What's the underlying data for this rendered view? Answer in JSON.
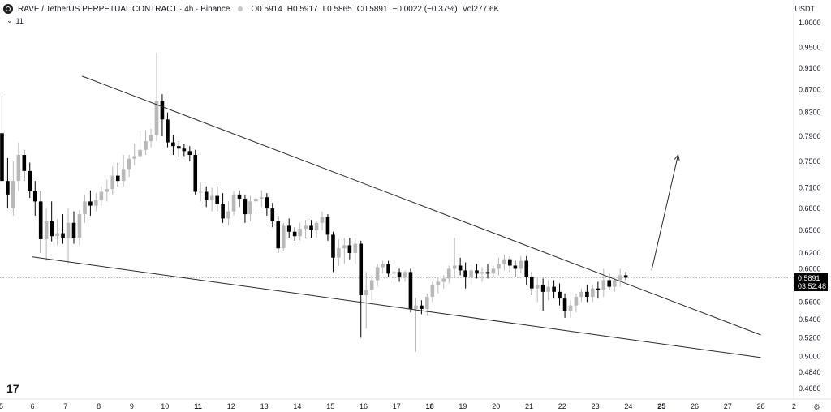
{
  "header": {
    "symbol": "RAVE / TetherUS PERPETUAL CONTRACT · 4h · Binance",
    "open": "O0.5914",
    "high": "H0.5917",
    "low": "L0.5865",
    "close": "C0.5891",
    "change": "−0.0022 (−0.37%)",
    "volume": "Vol277.6K",
    "indicator_toggle": "⌄",
    "indicator_count": "11",
    "currency": "USDT"
  },
  "price_tag": {
    "price": "0.5891",
    "countdown": "03:52:48"
  },
  "footer": {
    "tv_logo": "17"
  },
  "chart_data": {
    "type": "candlestick",
    "y_axis": {
      "scale": "log",
      "ylim": [
        0.46,
        1.03
      ],
      "ticks": [
        "1.0000",
        "0.9500",
        "0.9100",
        "0.8700",
        "0.8300",
        "0.7900",
        "0.7500",
        "0.7100",
        "0.6800",
        "0.6500",
        "0.6200",
        "0.6000",
        "0.5600",
        "0.5400",
        "0.5200",
        "0.5000",
        "0.4840",
        "0.4680"
      ]
    },
    "x_axis": {
      "ticks": [
        {
          "label": "6",
          "day": 6
        },
        {
          "label": "7",
          "day": 7
        },
        {
          "label": "8",
          "day": 8
        },
        {
          "label": "9",
          "day": 9
        },
        {
          "label": "10",
          "day": 10
        },
        {
          "label": "11",
          "day": 11,
          "bold": true
        },
        {
          "label": "12",
          "day": 12
        },
        {
          "label": "13",
          "day": 13
        },
        {
          "label": "14",
          "day": 14
        },
        {
          "label": "15",
          "day": 15
        },
        {
          "label": "16",
          "day": 16
        },
        {
          "label": "17",
          "day": 17
        },
        {
          "label": "18",
          "day": 18,
          "bold": true
        },
        {
          "label": "19",
          "day": 19
        },
        {
          "label": "20",
          "day": 20
        },
        {
          "label": "21",
          "day": 21
        },
        {
          "label": "22",
          "day": 22
        },
        {
          "label": "23",
          "day": 23
        },
        {
          "label": "24",
          "day": 24
        },
        {
          "label": "25",
          "day": 25,
          "bold": true
        },
        {
          "label": "26",
          "day": 26
        },
        {
          "label": "27",
          "day": 27
        },
        {
          "label": "28",
          "day": 28
        },
        {
          "label": "2",
          "day": 29
        }
      ]
    },
    "x_range_days": [
      5.1,
      29.1
    ],
    "current_price": 0.5891,
    "up_color": "#b8b8b8",
    "down_color": "#000000",
    "candles": [
      [
        5.08,
        0.795,
        0.86,
        0.72,
        0.72
      ],
      [
        5.25,
        0.72,
        0.755,
        0.68,
        0.7
      ],
      [
        5.42,
        0.68,
        0.75,
        0.67,
        0.72
      ],
      [
        5.58,
        0.72,
        0.78,
        0.705,
        0.76
      ],
      [
        5.75,
        0.76,
        0.768,
        0.72,
        0.735
      ],
      [
        5.92,
        0.735,
        0.748,
        0.695,
        0.705
      ],
      [
        6.08,
        0.705,
        0.72,
        0.67,
        0.69
      ],
      [
        6.25,
        0.69,
        0.705,
        0.62,
        0.638
      ],
      [
        6.42,
        0.638,
        0.68,
        0.61,
        0.662
      ],
      [
        6.58,
        0.662,
        0.69,
        0.635,
        0.642
      ],
      [
        6.75,
        0.642,
        0.665,
        0.63,
        0.646
      ],
      [
        6.92,
        0.646,
        0.672,
        0.632,
        0.64
      ],
      [
        7.08,
        0.64,
        0.68,
        0.605,
        0.66
      ],
      [
        7.25,
        0.66,
        0.676,
        0.632,
        0.64
      ],
      [
        7.42,
        0.64,
        0.678,
        0.63,
        0.672
      ],
      [
        7.58,
        0.672,
        0.7,
        0.66,
        0.69
      ],
      [
        7.75,
        0.69,
        0.706,
        0.67,
        0.684
      ],
      [
        7.92,
        0.684,
        0.702,
        0.676,
        0.692
      ],
      [
        8.08,
        0.692,
        0.712,
        0.684,
        0.704
      ],
      [
        8.25,
        0.704,
        0.722,
        0.69,
        0.708
      ],
      [
        8.42,
        0.708,
        0.742,
        0.7,
        0.728
      ],
      [
        8.58,
        0.728,
        0.748,
        0.712,
        0.72
      ],
      [
        8.75,
        0.72,
        0.76,
        0.712,
        0.738
      ],
      [
        8.92,
        0.738,
        0.76,
        0.726,
        0.754
      ],
      [
        9.08,
        0.754,
        0.778,
        0.744,
        0.758
      ],
      [
        9.25,
        0.758,
        0.8,
        0.75,
        0.768
      ],
      [
        9.42,
        0.768,
        0.8,
        0.76,
        0.782
      ],
      [
        9.58,
        0.782,
        0.802,
        0.772,
        0.792
      ],
      [
        9.75,
        0.792,
        0.94,
        0.782,
        0.85
      ],
      [
        9.92,
        0.85,
        0.862,
        0.79,
        0.818
      ],
      [
        10.08,
        0.818,
        0.83,
        0.772,
        0.78
      ],
      [
        10.25,
        0.78,
        0.792,
        0.76,
        0.774
      ],
      [
        10.42,
        0.774,
        0.782,
        0.756,
        0.77
      ],
      [
        10.58,
        0.77,
        0.778,
        0.758,
        0.766
      ],
      [
        10.75,
        0.766,
        0.774,
        0.75,
        0.76
      ],
      [
        10.92,
        0.76,
        0.768,
        0.7,
        0.704
      ],
      [
        11.08,
        0.704,
        0.718,
        0.69,
        0.704
      ],
      [
        11.25,
        0.704,
        0.712,
        0.682,
        0.692
      ],
      [
        11.42,
        0.692,
        0.71,
        0.676,
        0.698
      ],
      [
        11.58,
        0.698,
        0.712,
        0.676,
        0.686
      ],
      [
        11.75,
        0.686,
        0.702,
        0.66,
        0.666
      ],
      [
        11.92,
        0.666,
        0.69,
        0.656,
        0.676
      ],
      [
        12.08,
        0.676,
        0.705,
        0.67,
        0.7
      ],
      [
        12.25,
        0.7,
        0.706,
        0.682,
        0.694
      ],
      [
        12.42,
        0.694,
        0.7,
        0.66,
        0.672
      ],
      [
        12.58,
        0.672,
        0.698,
        0.662,
        0.69
      ],
      [
        12.75,
        0.69,
        0.7,
        0.68,
        0.694
      ],
      [
        12.92,
        0.694,
        0.706,
        0.682,
        0.696
      ],
      [
        13.08,
        0.696,
        0.702,
        0.67,
        0.68
      ],
      [
        13.25,
        0.68,
        0.688,
        0.654,
        0.662
      ],
      [
        13.42,
        0.662,
        0.67,
        0.62,
        0.626
      ],
      [
        13.58,
        0.626,
        0.66,
        0.622,
        0.656
      ],
      [
        13.75,
        0.656,
        0.666,
        0.64,
        0.648
      ],
      [
        13.92,
        0.648,
        0.654,
        0.636,
        0.642
      ],
      [
        14.08,
        0.642,
        0.66,
        0.636,
        0.652
      ],
      [
        14.25,
        0.652,
        0.664,
        0.64,
        0.656
      ],
      [
        14.42,
        0.656,
        0.664,
        0.64,
        0.65
      ],
      [
        14.58,
        0.65,
        0.662,
        0.64,
        0.66
      ],
      [
        14.75,
        0.66,
        0.676,
        0.65,
        0.668
      ],
      [
        14.92,
        0.668,
        0.672,
        0.636,
        0.644
      ],
      [
        15.08,
        0.644,
        0.648,
        0.596,
        0.614
      ],
      [
        15.25,
        0.614,
        0.638,
        0.604,
        0.626
      ],
      [
        15.42,
        0.626,
        0.64,
        0.606,
        0.63
      ],
      [
        15.58,
        0.63,
        0.64,
        0.612,
        0.62
      ],
      [
        15.75,
        0.62,
        0.64,
        0.606,
        0.632
      ],
      [
        15.92,
        0.632,
        0.636,
        0.52,
        0.568
      ],
      [
        16.08,
        0.568,
        0.596,
        0.53,
        0.574
      ],
      [
        16.25,
        0.574,
        0.592,
        0.562,
        0.586
      ],
      [
        16.42,
        0.586,
        0.606,
        0.578,
        0.602
      ],
      [
        16.58,
        0.602,
        0.61,
        0.594,
        0.606
      ],
      [
        16.75,
        0.606,
        0.61,
        0.59,
        0.594
      ],
      [
        16.92,
        0.594,
        0.602,
        0.586,
        0.596
      ],
      [
        17.08,
        0.596,
        0.6,
        0.584,
        0.59
      ],
      [
        17.25,
        0.59,
        0.598,
        0.584,
        0.596
      ],
      [
        17.42,
        0.596,
        0.6,
        0.548,
        0.552
      ],
      [
        17.58,
        0.552,
        0.565,
        0.505,
        0.556
      ],
      [
        17.75,
        0.556,
        0.562,
        0.546,
        0.552
      ],
      [
        17.92,
        0.552,
        0.57,
        0.544,
        0.566
      ],
      [
        18.08,
        0.566,
        0.584,
        0.56,
        0.58
      ],
      [
        18.25,
        0.58,
        0.59,
        0.57,
        0.584
      ],
      [
        18.42,
        0.584,
        0.592,
        0.576,
        0.588
      ],
      [
        18.58,
        0.588,
        0.604,
        0.582,
        0.6
      ],
      [
        18.75,
        0.6,
        0.64,
        0.59,
        0.604
      ],
      [
        18.92,
        0.604,
        0.614,
        0.592,
        0.598
      ],
      [
        19.08,
        0.598,
        0.608,
        0.576,
        0.59
      ],
      [
        19.25,
        0.59,
        0.604,
        0.58,
        0.598
      ],
      [
        19.42,
        0.598,
        0.606,
        0.588,
        0.594
      ],
      [
        19.58,
        0.594,
        0.602,
        0.584,
        0.596
      ],
      [
        19.75,
        0.596,
        0.606,
        0.588,
        0.594
      ],
      [
        19.92,
        0.594,
        0.604,
        0.59,
        0.6
      ],
      [
        20.08,
        0.6,
        0.614,
        0.592,
        0.606
      ],
      [
        20.25,
        0.606,
        0.618,
        0.598,
        0.612
      ],
      [
        20.42,
        0.612,
        0.616,
        0.596,
        0.604
      ],
      [
        20.58,
        0.604,
        0.61,
        0.59,
        0.6
      ],
      [
        20.75,
        0.6,
        0.616,
        0.594,
        0.61
      ],
      [
        20.92,
        0.61,
        0.616,
        0.58,
        0.59
      ],
      [
        21.08,
        0.59,
        0.596,
        0.568,
        0.576
      ],
      [
        21.25,
        0.576,
        0.588,
        0.56,
        0.58
      ],
      [
        21.42,
        0.58,
        0.588,
        0.55,
        0.572
      ],
      [
        21.58,
        0.572,
        0.586,
        0.562,
        0.578
      ],
      [
        21.75,
        0.578,
        0.586,
        0.564,
        0.572
      ],
      [
        21.92,
        0.572,
        0.582,
        0.556,
        0.564
      ],
      [
        22.08,
        0.564,
        0.57,
        0.542,
        0.55
      ],
      [
        22.25,
        0.55,
        0.562,
        0.542,
        0.556
      ],
      [
        22.42,
        0.556,
        0.57,
        0.548,
        0.566
      ],
      [
        22.58,
        0.566,
        0.576,
        0.56,
        0.572
      ],
      [
        22.75,
        0.572,
        0.58,
        0.56,
        0.566
      ],
      [
        22.92,
        0.566,
        0.58,
        0.56,
        0.576
      ],
      [
        23.08,
        0.576,
        0.584,
        0.564,
        0.574
      ],
      [
        23.25,
        0.574,
        0.6,
        0.566,
        0.586
      ],
      [
        23.42,
        0.586,
        0.594,
        0.574,
        0.578
      ],
      [
        23.58,
        0.578,
        0.59,
        0.572,
        0.586
      ],
      [
        23.75,
        0.586,
        0.6,
        0.578,
        0.592
      ],
      [
        23.92,
        0.592,
        0.596,
        0.586,
        0.589
      ]
    ],
    "annotations": {
      "upper_trendline": [
        [
          7.5,
          0.895
        ],
        [
          28.0,
          0.523
        ]
      ],
      "lower_trendline": [
        [
          6.0,
          0.615
        ],
        [
          28.0,
          0.499
        ]
      ],
      "breakout_arrow": [
        [
          24.7,
          0.598
        ],
        [
          25.5,
          0.76
        ]
      ]
    },
    "grid": false
  }
}
